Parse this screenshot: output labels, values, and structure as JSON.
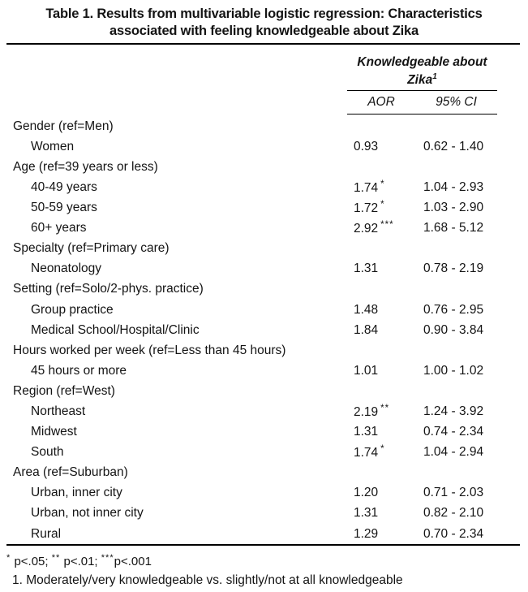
{
  "title": {
    "line1": "Table 1. Results from multivariable logistic regression: Characteristics",
    "line2": "associated with feeling knowledgeable about Zika"
  },
  "header": {
    "group_line1": "Knowledgeable about",
    "group_line2": "Zika",
    "group_footnote_marker": "1",
    "aor_label": "AOR",
    "ci_label": "95% CI"
  },
  "table": {
    "rows": [
      {
        "type": "group",
        "label": "Gender (ref=Men)",
        "aor": "",
        "sig": "",
        "ci": ""
      },
      {
        "type": "item",
        "label": "Women",
        "aor": "0.93",
        "sig": "",
        "ci": "0.62 - 1.40"
      },
      {
        "type": "group",
        "label": "Age (ref=39 years or less)",
        "aor": "",
        "sig": "",
        "ci": ""
      },
      {
        "type": "item",
        "label": "40-49 years",
        "aor": "1.74",
        "sig": "*",
        "ci": "1.04 - 2.93"
      },
      {
        "type": "item",
        "label": "50-59 years",
        "aor": "1.72",
        "sig": "*",
        "ci": "1.03 - 2.90"
      },
      {
        "type": "item",
        "label": "60+ years",
        "aor": "2.92",
        "sig": "***",
        "ci": "1.68 - 5.12"
      },
      {
        "type": "group",
        "label": "Specialty (ref=Primary care)",
        "aor": "",
        "sig": "",
        "ci": ""
      },
      {
        "type": "item",
        "label": "Neonatology",
        "aor": "1.31",
        "sig": "",
        "ci": "0.78 - 2.19"
      },
      {
        "type": "group",
        "label": "Setting (ref=Solo/2-phys. practice)",
        "aor": "",
        "sig": "",
        "ci": ""
      },
      {
        "type": "item",
        "label": "Group practice",
        "aor": "1.48",
        "sig": "",
        "ci": "0.76 - 2.95"
      },
      {
        "type": "item",
        "label": "Medical School/Hospital/Clinic",
        "aor": "1.84",
        "sig": "",
        "ci": "0.90 - 3.84"
      },
      {
        "type": "group",
        "label": "Hours worked per week (ref=Less than 45 hours)",
        "aor": "",
        "sig": "",
        "ci": ""
      },
      {
        "type": "item",
        "label": "45 hours or more",
        "aor": "1.01",
        "sig": "",
        "ci": "1.00 - 1.02"
      },
      {
        "type": "group",
        "label": "Region (ref=West)",
        "aor": "",
        "sig": "",
        "ci": ""
      },
      {
        "type": "item",
        "label": "Northeast",
        "aor": "2.19",
        "sig": "**",
        "ci": "1.24 - 3.92"
      },
      {
        "type": "item",
        "label": "Midwest",
        "aor": "1.31",
        "sig": "",
        "ci": "0.74 - 2.34"
      },
      {
        "type": "item",
        "label": "South",
        "aor": "1.74",
        "sig": "*",
        "ci": "1.04 - 2.94"
      },
      {
        "type": "group",
        "label": "Area (ref=Suburban)",
        "aor": "",
        "sig": "",
        "ci": ""
      },
      {
        "type": "item",
        "label": "Urban, inner city",
        "aor": "1.20",
        "sig": "",
        "ci": "0.71 - 2.03"
      },
      {
        "type": "item",
        "label": "Urban, not inner city",
        "aor": "1.31",
        "sig": "",
        "ci": "0.82 - 2.10"
      },
      {
        "type": "item",
        "label": "Rural",
        "aor": "1.29",
        "sig": "",
        "ci": "0.70 - 2.34"
      }
    ]
  },
  "footnotes": {
    "significance_parts": [
      {
        "type": "sup",
        "text": "*"
      },
      {
        "type": "text",
        "text": " p<.05; "
      },
      {
        "type": "sup",
        "text": "**"
      },
      {
        "type": "text",
        "text": " p<.01; "
      },
      {
        "type": "sup",
        "text": "***"
      },
      {
        "type": "text",
        "text": "p<.001"
      }
    ],
    "note": "1. Moderately/very knowledgeable vs. slightly/not at all knowledgeable"
  },
  "colors": {
    "background": "#ffffff",
    "text": "#141414",
    "rule": "#000000"
  }
}
